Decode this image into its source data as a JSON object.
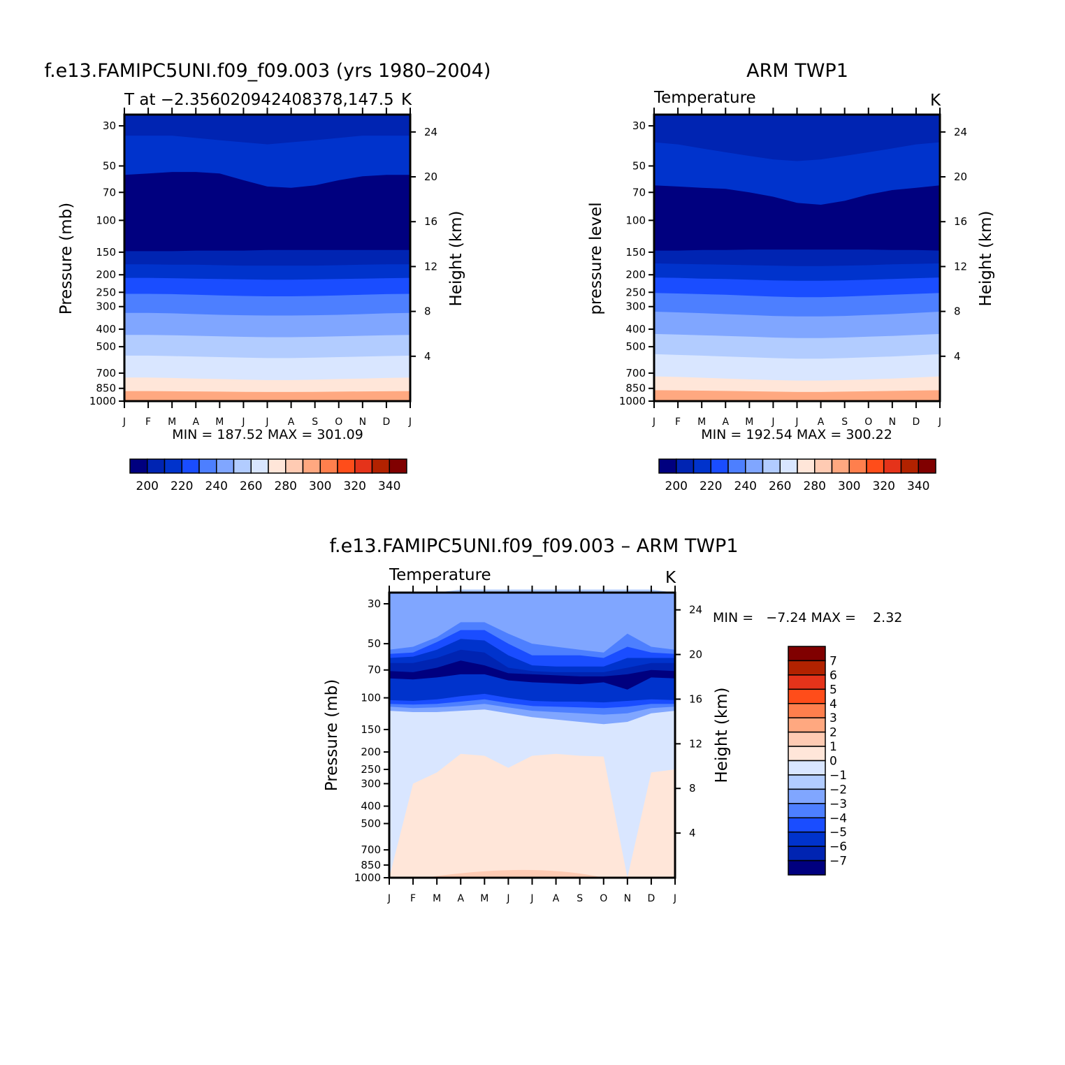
{
  "colors": {
    "fill": [
      "#00007f",
      "#0024b2",
      "#0033cc",
      "#1a4dff",
      "#4d7fff",
      "#80a6ff",
      "#b2ccff",
      "#d9e6ff",
      "#ffe6d9",
      "#ffcbb3",
      "#ffa880",
      "#ff7f4d",
      "#ff4d1a",
      "#e5331a",
      "#b22200",
      "#800000"
    ]
  },
  "chart_data": [
    {
      "type": "heatmap",
      "panel": "top-left",
      "title": "f.e13.FAMIPC5UNI.f09_f09.003 (yrs 1980–2004)",
      "subtitle": "T at −2.356020942408378,147.5",
      "units": "K",
      "ylabel": "Pressure (mb)",
      "y2label": "Height (km)",
      "x": [
        "J",
        "F",
        "M",
        "A",
        "M",
        "J",
        "J",
        "A",
        "S",
        "O",
        "N",
        "D",
        "J"
      ],
      "y_ticks": [
        "30",
        "50",
        "70",
        "100",
        "150",
        "200",
        "250",
        "300",
        "400",
        "500",
        "700",
        "850",
        "1000"
      ],
      "y2_ticks": [
        "24",
        "20",
        "16",
        "12",
        "8",
        "4"
      ],
      "y_log_scale": true,
      "contour_levels": [
        195,
        205,
        215,
        225,
        235,
        245,
        255,
        265,
        275,
        285,
        295,
        305,
        315,
        325,
        335
      ],
      "min": "187.52",
      "max": "301.09",
      "minmax_text": "MIN = 187.52 MAX = 301.09",
      "colorbar": {
        "orientation": "horizontal",
        "labels": [
          "200",
          "220",
          "240",
          "260",
          "280",
          "300",
          "320",
          "340"
        ]
      },
      "bands_pressure_mb": [
        [
          34,
          34,
          34,
          35,
          36,
          37,
          38,
          37,
          36,
          35,
          34,
          34,
          34
        ],
        [
          56,
          55,
          54,
          54,
          55,
          60,
          65,
          66,
          64,
          60,
          57,
          56,
          56
        ],
        [
          148,
          148,
          148,
          147,
          147,
          147,
          146,
          146,
          146,
          146,
          146,
          146,
          146
        ],
        [
          175,
          175,
          176,
          176,
          177,
          178,
          178,
          178,
          178,
          177,
          176,
          175,
          175
        ],
        [
          208,
          208,
          209,
          210,
          211,
          212,
          213,
          213,
          212,
          211,
          210,
          209,
          208
        ],
        [
          255,
          255,
          256,
          258,
          260,
          262,
          263,
          263,
          262,
          260,
          258,
          256,
          255
        ],
        [
          325,
          325,
          327,
          330,
          333,
          335,
          336,
          336,
          335,
          333,
          330,
          327,
          325
        ],
        [
          430,
          430,
          432,
          435,
          438,
          441,
          443,
          443,
          441,
          438,
          435,
          432,
          430
        ],
        [
          560,
          560,
          563,
          567,
          571,
          575,
          578,
          578,
          575,
          571,
          567,
          563,
          560
        ],
        [
          740,
          740,
          745,
          750,
          755,
          760,
          765,
          765,
          760,
          755,
          750,
          745,
          740
        ],
        [
          880,
          880,
          882,
          884,
          886,
          888,
          890,
          890,
          888,
          886,
          884,
          882,
          880
        ]
      ]
    },
    {
      "type": "heatmap",
      "panel": "top-right",
      "title": "ARM TWP1",
      "subtitle": "Temperature",
      "units": "K",
      "ylabel": "pressure level",
      "y2label": "Height (km)",
      "x": [
        "J",
        "F",
        "M",
        "A",
        "M",
        "J",
        "J",
        "A",
        "S",
        "O",
        "N",
        "D",
        "J"
      ],
      "y_ticks": [
        "30",
        "50",
        "70",
        "100",
        "150",
        "200",
        "250",
        "300",
        "400",
        "500",
        "700",
        "850",
        "1000"
      ],
      "y2_ticks": [
        "24",
        "20",
        "16",
        "12",
        "8",
        "4"
      ],
      "y_log_scale": true,
      "contour_levels": [
        195,
        205,
        215,
        225,
        235,
        245,
        255,
        265,
        275,
        285,
        295,
        305,
        315,
        325,
        335
      ],
      "min": "192.54",
      "max": "300.22",
      "minmax_text": "MIN = 192.54 MAX = 300.22",
      "colorbar": {
        "orientation": "horizontal",
        "labels": [
          "200",
          "220",
          "240",
          "260",
          "280",
          "300",
          "320",
          "340"
        ]
      },
      "bands_pressure_mb": [
        [
          37,
          38,
          40,
          42,
          44,
          46,
          47,
          46,
          44,
          42,
          40,
          38,
          37
        ],
        [
          64,
          65,
          66,
          67,
          70,
          74,
          80,
          82,
          78,
          72,
          68,
          66,
          64
        ],
        [
          147,
          147,
          146,
          146,
          145,
          145,
          145,
          145,
          145,
          145,
          146,
          146,
          147
        ],
        [
          173,
          174,
          175,
          176,
          177,
          178,
          179,
          179,
          178,
          177,
          175,
          174,
          173
        ],
        [
          207,
          208,
          210,
          211,
          213,
          215,
          216,
          216,
          215,
          213,
          211,
          209,
          207
        ],
        [
          252,
          254,
          256,
          258,
          261,
          264,
          266,
          266,
          264,
          261,
          258,
          255,
          252
        ],
        [
          320,
          323,
          326,
          330,
          334,
          338,
          340,
          340,
          338,
          334,
          330,
          325,
          320
        ],
        [
          425,
          428,
          432,
          436,
          440,
          445,
          448,
          448,
          445,
          440,
          436,
          430,
          425
        ],
        [
          550,
          555,
          560,
          566,
          572,
          578,
          582,
          582,
          578,
          572,
          566,
          558,
          550
        ],
        [
          730,
          735,
          742,
          750,
          758,
          765,
          770,
          770,
          765,
          758,
          750,
          740,
          730
        ],
        [
          870,
          872,
          875,
          878,
          882,
          886,
          890,
          890,
          886,
          882,
          878,
          874,
          870
        ]
      ]
    },
    {
      "type": "heatmap",
      "panel": "bottom",
      "title": "f.e13.FAMIPC5UNI.f09_f09.003 – ARM TWP1",
      "subtitle": "Temperature",
      "units": "K",
      "ylabel": "Pressure (mb)",
      "y2label": "Height (km)",
      "x": [
        "J",
        "F",
        "M",
        "A",
        "M",
        "J",
        "J",
        "A",
        "S",
        "O",
        "N",
        "D",
        "J"
      ],
      "y_ticks": [
        "30",
        "50",
        "70",
        "100",
        "150",
        "200",
        "250",
        "300",
        "400",
        "500",
        "700",
        "850",
        "1000"
      ],
      "y2_ticks": [
        "24",
        "20",
        "16",
        "12",
        "8",
        "4"
      ],
      "y_log_scale": true,
      "contour_levels": [
        -7,
        -6,
        -5,
        -4,
        -3,
        -2,
        -1,
        0,
        1,
        2,
        3,
        4,
        5,
        6,
        7
      ],
      "min": "−7.24",
      "max": "2.32",
      "minmax_text": "MIN =   −7.24 MAX =    2.32",
      "colorbar": {
        "orientation": "vertical",
        "labels": [
          "7",
          "6",
          "5",
          "4",
          "3",
          "2",
          "1",
          "0",
          "−1",
          "−2",
          "−3",
          "−4",
          "−5",
          "−6",
          "−7"
        ]
      },
      "bands_pressure_mb": [
        [
          26,
          26,
          26,
          25,
          25,
          25,
          25,
          25,
          25,
          25,
          25,
          25,
          26
        ],
        [
          54,
          52,
          46,
          38,
          38,
          44,
          50,
          52,
          54,
          56,
          44,
          52,
          54
        ],
        [
          57,
          56,
          49,
          42,
          42,
          50,
          58,
          58,
          58,
          60,
          52,
          56,
          57
        ],
        [
          60,
          59,
          54,
          47,
          48,
          58,
          66,
          67,
          67,
          67,
          60,
          60,
          60
        ],
        [
          64,
          64,
          60,
          54,
          56,
          68,
          71,
          72,
          72,
          72,
          68,
          64,
          64
        ],
        [
          71,
          72,
          68,
          62,
          66,
          73,
          74,
          75,
          76,
          76,
          74,
          70,
          71
        ],
        [
          78,
          79,
          77,
          74,
          74,
          80,
          82,
          83,
          84,
          82,
          90,
          77,
          78
        ],
        [
          103,
          104,
          102,
          98,
          95,
          100,
          104,
          105,
          105,
          106,
          104,
          102,
          103
        ],
        [
          108,
          109,
          108,
          105,
          102,
          107,
          111,
          112,
          113,
          114,
          112,
          108,
          108
        ],
        [
          112,
          114,
          113,
          111,
          108,
          113,
          118,
          120,
          122,
          124,
          122,
          114,
          112
        ],
        [
          118,
          120,
          120,
          118,
          116,
          122,
          128,
          132,
          136,
          140,
          136,
          122,
          118
        ]
      ],
      "zero_contour_region_mb": [
        1000,
        300,
        260,
        205,
        210,
        245,
        210,
        205,
        210,
        212,
        1000,
        260,
        250
      ]
    }
  ]
}
